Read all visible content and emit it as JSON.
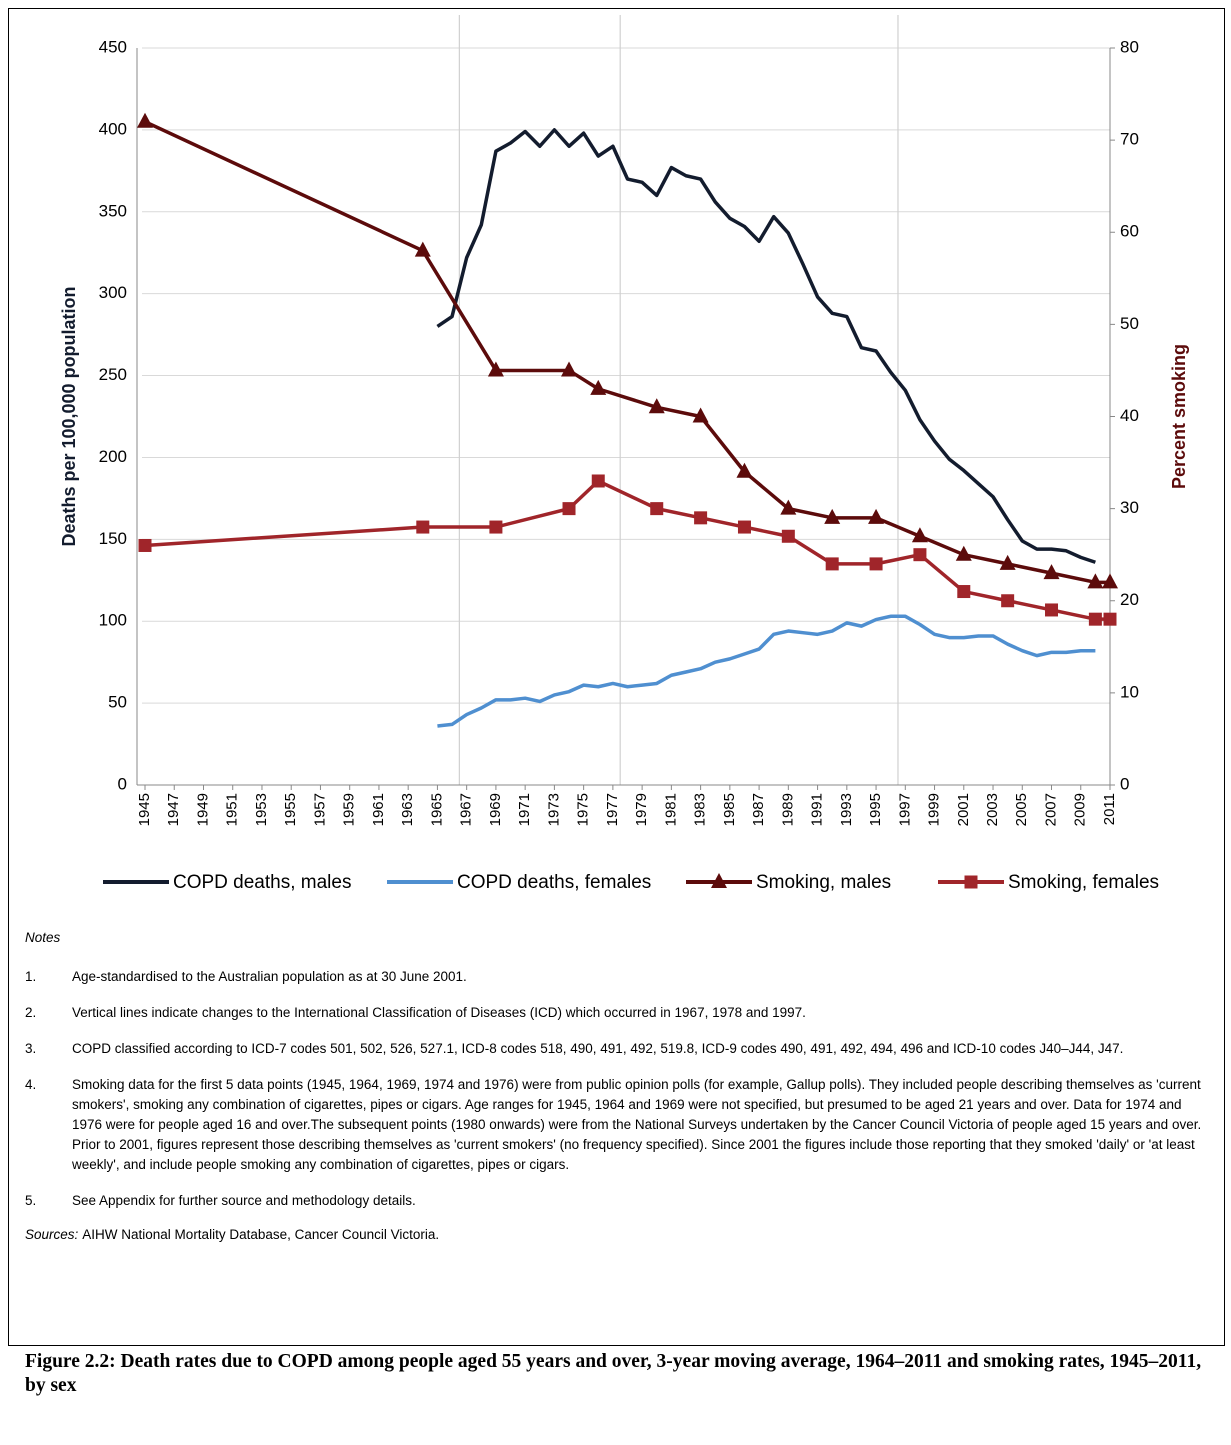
{
  "chart_data": {
    "type": "line",
    "ylabel": "Deaths per 100,000 population",
    "y2label": "Percent smoking",
    "xlim": [
      1945,
      2011
    ],
    "xticks": [
      1945,
      1947,
      1949,
      1951,
      1953,
      1955,
      1957,
      1959,
      1961,
      1963,
      1965,
      1967,
      1969,
      1971,
      1973,
      1975,
      1977,
      1979,
      1981,
      1983,
      1985,
      1987,
      1989,
      1991,
      1993,
      1995,
      1997,
      1999,
      2001,
      2003,
      2005,
      2007,
      2009,
      2011
    ],
    "ylim": [
      0,
      450
    ],
    "yticks": [
      0,
      50,
      100,
      150,
      200,
      250,
      300,
      350,
      400,
      450
    ],
    "y2lim": [
      0,
      80
    ],
    "y2ticks": [
      0,
      10,
      20,
      30,
      40,
      50,
      60,
      70,
      80
    ],
    "grid": true,
    "vlines": [
      1967,
      1978,
      1997
    ],
    "legend": "bottom",
    "series": [
      {
        "name": "COPD deaths, males",
        "color": "#131c2e",
        "axis": "y",
        "x": [
          1965,
          1966,
          1967,
          1968,
          1969,
          1970,
          1971,
          1972,
          1973,
          1974,
          1975,
          1976,
          1977,
          1978,
          1979,
          1980,
          1981,
          1982,
          1983,
          1984,
          1985,
          1986,
          1987,
          1988,
          1989,
          1990,
          1991,
          1992,
          1993,
          1994,
          1995,
          1996,
          1997,
          1998,
          1999,
          2000,
          2001,
          2002,
          2003,
          2004,
          2005,
          2006,
          2007,
          2008,
          2009,
          2010
        ],
        "values": [
          280,
          286,
          322,
          342,
          387,
          392,
          399,
          390,
          400,
          390,
          398,
          384,
          390,
          370,
          368,
          360,
          377,
          372,
          370,
          356,
          346,
          341,
          332,
          347,
          337,
          318,
          298,
          288,
          286,
          267,
          265,
          252,
          241,
          223,
          210,
          199,
          192,
          184,
          176,
          162,
          149,
          144,
          144,
          143,
          139,
          136
        ]
      },
      {
        "name": "COPD deaths, females",
        "color": "#4f8fd0",
        "axis": "y",
        "x": [
          1965,
          1966,
          1967,
          1968,
          1969,
          1970,
          1971,
          1972,
          1973,
          1974,
          1975,
          1976,
          1977,
          1978,
          1979,
          1980,
          1981,
          1982,
          1983,
          1984,
          1985,
          1986,
          1987,
          1988,
          1989,
          1990,
          1991,
          1992,
          1993,
          1994,
          1995,
          1996,
          1997,
          1998,
          1999,
          2000,
          2001,
          2002,
          2003,
          2004,
          2005,
          2006,
          2007,
          2008,
          2009,
          2010
        ],
        "values": [
          36,
          37,
          43,
          47,
          52,
          52,
          53,
          51,
          55,
          57,
          61,
          60,
          62,
          60,
          61,
          62,
          67,
          69,
          71,
          75,
          77,
          80,
          83,
          92,
          94,
          93,
          92,
          94,
          99,
          97,
          101,
          103,
          103,
          98,
          92,
          90,
          90,
          91,
          91,
          86,
          82,
          79,
          81,
          81,
          82,
          82
        ]
      },
      {
        "name": "Smoking, males",
        "color": "#5c0b0b",
        "axis": "y2",
        "marker": "triangle",
        "x": [
          1945,
          1964,
          1969,
          1974,
          1976,
          1980,
          1983,
          1986,
          1989,
          1992,
          1995,
          1998,
          2001,
          2004,
          2007,
          2010,
          2011
        ],
        "values": [
          72,
          58,
          45,
          45,
          43,
          41,
          40,
          34,
          30,
          29,
          29,
          27,
          25,
          24,
          23,
          22,
          22
        ]
      },
      {
        "name": "Smoking, females",
        "color": "#a0252a",
        "axis": "y2",
        "marker": "square",
        "x": [
          1945,
          1964,
          1969,
          1974,
          1976,
          1980,
          1983,
          1986,
          1989,
          1992,
          1995,
          1998,
          2001,
          2004,
          2007,
          2010,
          2011
        ],
        "values": [
          26,
          28,
          28,
          30,
          33,
          30,
          29,
          28,
          27,
          24,
          24,
          25,
          21,
          20,
          19,
          18,
          18
        ]
      }
    ]
  },
  "notes": {
    "heading": "Notes",
    "items": [
      {
        "number": "1.",
        "text": "Age-standardised to the Australian population as at 30 June 2001."
      },
      {
        "number": "2.",
        "text": "Vertical lines indicate changes to the International Classification of Diseases (ICD) which occurred in 1967, 1978 and 1997."
      },
      {
        "number": "3.",
        "text": "COPD classified according to ICD-7 codes 501, 502, 526, 527.1, ICD-8 codes 518, 490, 491, 492, 519.8, ICD-9 codes 490, 491, 492, 494, 496 and ICD-10 codes J40–J44, J47."
      },
      {
        "number": "4.",
        "text": "Smoking data for the first 5 data points (1945, 1964, 1969, 1974 and 1976) were from public opinion polls (for example, Gallup polls). They included people describing themselves as 'current smokers', smoking any combination of cigarettes, pipes or cigars. Age ranges for 1945, 1964 and 1969 were not specified, but presumed to be aged 21 years and over. Data for 1974 and 1976 were for people aged 16 and over.The subsequent points (1980 onwards) were from the National Surveys undertaken by the Cancer Council Victoria of people aged 15 years and over. Prior to 2001, figures represent those describing themselves as 'current smokers' (no frequency specified). Since 2001 the figures include those reporting that they smoked 'daily' or 'at least weekly', and include people smoking any combination of cigarettes, pipes or cigars."
      },
      {
        "number": "5.",
        "text": "See Appendix for further source and methodology details."
      }
    ]
  },
  "sources": {
    "label": "Sources:",
    "text": "AIHW National Mortality Database, Cancer Council Victoria."
  },
  "figure_caption": "Figure 2.2: Death rates due to COPD among people aged 55 years and over, 3-year moving average, 1964–2011 and smoking rates, 1945–2011, by sex"
}
